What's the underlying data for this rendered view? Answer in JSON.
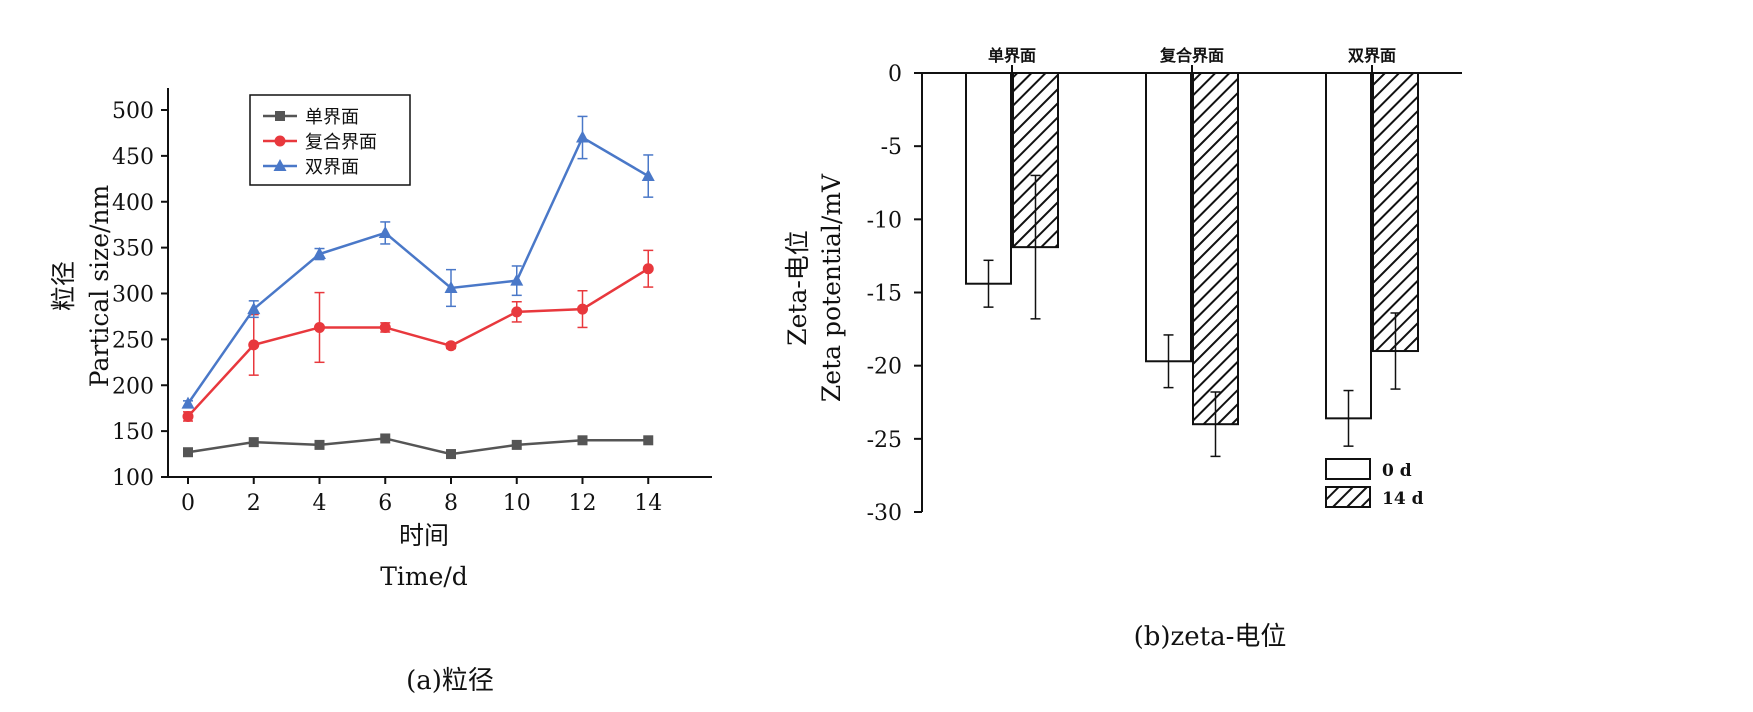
{
  "chart_data": [
    {
      "type": "line",
      "title": "",
      "xlabel_cn": "时间",
      "xlabel_en": "Time/d",
      "ylabel_cn": "粒径",
      "ylabel_en": "Partical  size/nm",
      "caption": "(a)粒径",
      "x": [
        0,
        2,
        4,
        6,
        8,
        10,
        12,
        14
      ],
      "xticks": [
        "0",
        "2",
        "4",
        "6",
        "8",
        "10",
        "12",
        "14"
      ],
      "yticks": [
        "100",
        "150",
        "200",
        "250",
        "300",
        "350",
        "400",
        "450",
        "500"
      ],
      "xlim": [
        0,
        16
      ],
      "ylim": [
        100,
        500
      ],
      "grid": false,
      "legend_position": "top-left",
      "series": [
        {
          "name": "单界面",
          "color": "#555555",
          "marker": "square",
          "values": [
            127,
            138,
            135,
            142,
            125,
            135,
            140,
            140
          ],
          "errors": [
            0,
            0,
            0,
            0,
            0,
            0,
            0,
            0
          ]
        },
        {
          "name": "复合界面",
          "color": "#e8383d",
          "marker": "circle",
          "values": [
            166,
            244,
            263,
            263,
            243,
            280,
            283,
            327
          ],
          "errors": [
            5,
            33,
            38,
            5,
            3,
            11,
            20,
            20
          ]
        },
        {
          "name": "双界面",
          "color": "#4a78c8",
          "marker": "triangle",
          "values": [
            180,
            283,
            343,
            366,
            306,
            314,
            470,
            428
          ],
          "errors": [
            3,
            9,
            6,
            12,
            20,
            16,
            23,
            23
          ]
        }
      ]
    },
    {
      "type": "bar",
      "title": "",
      "ylabel_cn": "Zeta-电位",
      "ylabel_en": "Zeta  potential/mV",
      "caption": "(b)zeta-电位",
      "categories": [
        "单界面",
        "复合界面",
        "双界面"
      ],
      "yticks": [
        "0",
        "-5",
        "-10",
        "-15",
        "-20",
        "-25",
        "-30"
      ],
      "ylim": [
        -30,
        0
      ],
      "grid": false,
      "legend_position": "bottom-right",
      "series": [
        {
          "name": "0 d",
          "pattern": "white",
          "values": [
            -14.4,
            -19.7,
            -23.6
          ],
          "errors": [
            1.6,
            1.8,
            1.9
          ]
        },
        {
          "name": "14 d",
          "pattern": "hatched",
          "values": [
            -11.9,
            -24.0,
            -19.0
          ],
          "errors": [
            4.9,
            2.2,
            2.6
          ]
        }
      ]
    }
  ]
}
